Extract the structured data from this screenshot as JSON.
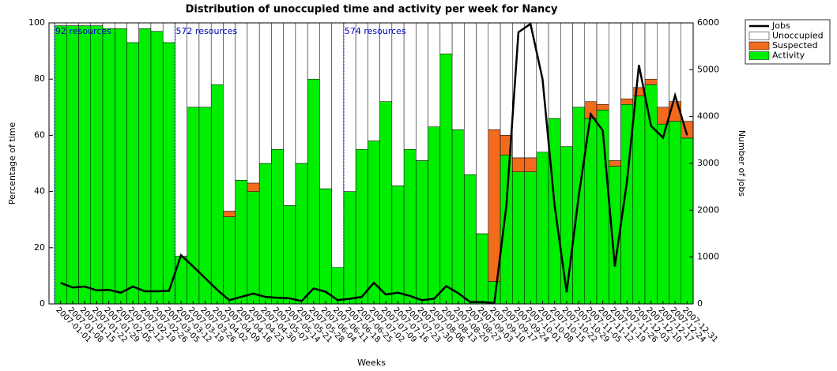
{
  "chart_data": {
    "type": "bar",
    "stacked": true,
    "title": "Distribution of unoccupied time and activity per week for Nancy",
    "xlabel": "Weeks",
    "ylabel": "Percentage of time",
    "y2label": "Number of jobs",
    "categories": [
      "2007-01-01",
      "2007-01-08",
      "2007-01-15",
      "2007-01-22",
      "2007-01-29",
      "2007-02-05",
      "2007-02-12",
      "2007-02-19",
      "2007-02-26",
      "2007-03-05",
      "2007-03-12",
      "2007-03-19",
      "2007-03-26",
      "2007-04-02",
      "2007-04-09",
      "2007-04-16",
      "2007-04-23",
      "2007-04-30",
      "2007-05-07",
      "2007-05-14",
      "2007-05-21",
      "2007-05-28",
      "2007-06-04",
      "2007-06-11",
      "2007-06-18",
      "2007-06-25",
      "2007-07-02",
      "2007-07-09",
      "2007-07-16",
      "2007-07-23",
      "2007-07-30",
      "2007-08-06",
      "2007-08-13",
      "2007-08-20",
      "2007-08-27",
      "2007-09-03",
      "2007-09-10",
      "2007-09-17",
      "2007-09-24",
      "2007-10-01",
      "2007-10-08",
      "2007-10-15",
      "2007-10-22",
      "2007-10-29",
      "2007-11-05",
      "2007-11-12",
      "2007-11-19",
      "2007-11-26",
      "2007-12-03",
      "2007-12-10",
      "2007-12-17",
      "2007-12-24",
      "2007-12-31"
    ],
    "series": [
      {
        "name": "Jobs",
        "type": "line",
        "axis": "y2",
        "color": "#000000",
        "values": [
          450,
          350,
          370,
          290,
          300,
          240,
          370,
          270,
          270,
          280,
          1040,
          800,
          550,
          300,
          80,
          150,
          220,
          150,
          130,
          120,
          60,
          330,
          260,
          80,
          110,
          150,
          450,
          200,
          240,
          170,
          80,
          110,
          380,
          230,
          40,
          40,
          20,
          2100,
          5800,
          5980,
          4800,
          2100,
          250,
          2300,
          4050,
          3700,
          800,
          2600,
          5100,
          3800,
          3550,
          4450,
          3600
        ]
      },
      {
        "name": "Unoccupied",
        "color": "#ffffff",
        "values": [
          1,
          1,
          1,
          1,
          2,
          2,
          7,
          2,
          3,
          7,
          83,
          30,
          30,
          22,
          67,
          56,
          57,
          50,
          45,
          65,
          50,
          20,
          59,
          87,
          60,
          45,
          42,
          28,
          58,
          45,
          49,
          37,
          11,
          38,
          54,
          75,
          38,
          40,
          48,
          48,
          46,
          34,
          44,
          30,
          28,
          29,
          49,
          27,
          23,
          20,
          30,
          28,
          35
        ]
      },
      {
        "name": "Suspected",
        "color": "#f26b1d",
        "values": [
          0,
          0,
          0,
          0,
          0,
          0,
          0,
          0,
          0,
          0,
          0,
          0,
          0,
          0,
          2,
          0,
          3,
          0,
          0,
          0,
          0,
          0,
          0,
          0,
          0,
          0,
          0,
          0,
          0,
          0,
          0,
          0,
          0,
          0,
          0,
          0,
          54,
          7,
          5,
          5,
          0,
          0,
          0,
          0,
          6,
          2,
          2,
          2,
          3,
          2,
          6,
          7,
          6
        ]
      },
      {
        "name": "Activity",
        "color": "#00ee00",
        "values": [
          99,
          99,
          99,
          99,
          98,
          98,
          93,
          98,
          97,
          93,
          17,
          70,
          70,
          78,
          31,
          44,
          40,
          50,
          55,
          35,
          50,
          80,
          41,
          13,
          40,
          55,
          58,
          72,
          42,
          55,
          51,
          63,
          89,
          62,
          46,
          25,
          8,
          53,
          47,
          47,
          54,
          66,
          56,
          70,
          66,
          69,
          49,
          71,
          74,
          78,
          64,
          65,
          59
        ]
      }
    ],
    "annotations": [
      {
        "text": "92 resources",
        "category": "2007-01-01"
      },
      {
        "text": "572 resources",
        "category": "2007-03-12"
      },
      {
        "text": "574 resources",
        "category": "2007-06-18"
      }
    ],
    "ylim": [
      0,
      100
    ],
    "yticks": [
      0,
      20,
      40,
      60,
      80,
      100
    ],
    "y2lim": [
      0,
      6000
    ],
    "y2ticks": [
      0,
      1000,
      2000,
      3000,
      4000,
      5000,
      6000
    ],
    "legend": "upper right outside"
  }
}
